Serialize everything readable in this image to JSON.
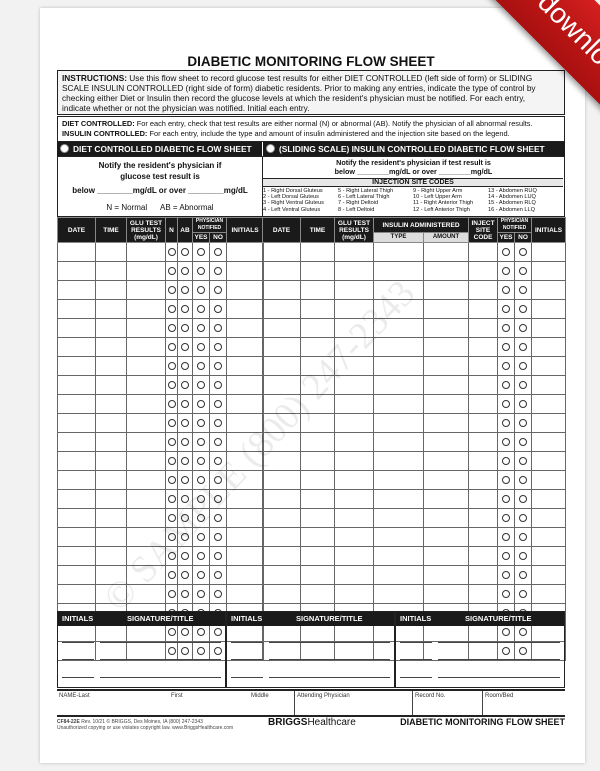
{
  "title": "DIABETIC MONITORING FLOW SHEET",
  "instructions": {
    "label": "INSTRUCTIONS:",
    "text": " Use this flow sheet to record glucose test results for either DIET CONTROLLED (left side of form) or SLIDING SCALE INSULIN CONTROLLED (right side of form) diabetic residents. Prior to making any entries, indicate the type of control by checking either Diet or Insulin then record the glucose levels at which the resident's physician must be notified. For each entry, indicate whether or not the physician was notified. Initial each entry."
  },
  "diet_controlled": {
    "label": "DIET CONTROLLED:",
    "text": " For each entry, check that test results are either normal (N) or abnormal (AB). Notify the physician of all abnormal results."
  },
  "insulin_controlled": {
    "label": "INSULIN CONTROLLED:",
    "text": " For each entry, include the type and amount of insulin administered and the injection site based on the legend."
  },
  "left": {
    "header": "DIET CONTROLLED DIABETIC FLOW SHEET",
    "notify1": "Notify the resident's physician if",
    "notify2": "glucose test result is",
    "notify3": "below ________mg/dL or over ________mg/dL",
    "legend": "N = Normal      AB = Abnormal",
    "columns": [
      "DATE",
      "TIME",
      "GLU TEST RESULTS (mg/dL)",
      "N",
      "AB",
      "PHYSICIAN NOTIFIED",
      "INITIALS"
    ],
    "yes": "YES",
    "no": "NO"
  },
  "right": {
    "header": "(SLIDING SCALE) INSULIN CONTROLLED DIABETIC FLOW SHEET",
    "notify1": "Notify the resident's physician if test result is",
    "notify2": "below ________mg/dL or over ________mg/dL",
    "codes_title": "INJECTION SITE CODES",
    "codes": [
      [
        "1 - Right Dorsal Gluteus",
        "2 - Left Dorsal Gluteus",
        "3 - Right Ventral Gluteus",
        "4 - Left Ventral Gluteus"
      ],
      [
        "5 - Right Lateral Thigh",
        "6 - Left Lateral Thigh",
        "7 - Right Deltoid",
        "8 - Left Deltoid"
      ],
      [
        "9 - Right Upper Arm",
        "10 - Left Upper Arm",
        "11 - Right Anterior Thigh",
        "12 - Left Anterior Thigh"
      ],
      [
        "13 - Abdomen RUQ",
        "14 - Abdomen LUQ",
        "15 - Abdomen RLQ",
        "16 - Abdomen LLQ"
      ]
    ],
    "columns": [
      "DATE",
      "TIME",
      "GLU TEST RESULTS (mg/dL)",
      "INSULIN ADMINISTERED",
      "INJECT SITE CODE",
      "PHYSICIAN NOTIFIED",
      "INITIALS"
    ],
    "type": "TYPE",
    "amount": "AMOUNT",
    "yes": "YES",
    "no": "NO"
  },
  "signature": {
    "initials": "INITIALS",
    "sig": "SIGNATURE/TITLE"
  },
  "footer_fields": [
    "NAME-Last",
    "First",
    "Middle",
    "Attending Physician",
    "Record No.",
    "Room/Bed"
  ],
  "form_code": "CF84-22E",
  "rev": "Rev. 10/21",
  "copyright": "© BRIGGS, Des Moines, IA (800) 247-2343",
  "copy_notice": "Unauthorized copying or use violates copyright law. www.BriggsHealthcare.com",
  "brand_bold": "BRIGGS",
  "brand_light": "Healthcare",
  "footer_title": "DIABETIC MONITORING FLOW SHEET",
  "watermark": "© SAMPLE (800) 247-2343",
  "download_label": "download",
  "colors": {
    "ribbon": "#c41818",
    "header_bar": "#1a1a1a"
  }
}
